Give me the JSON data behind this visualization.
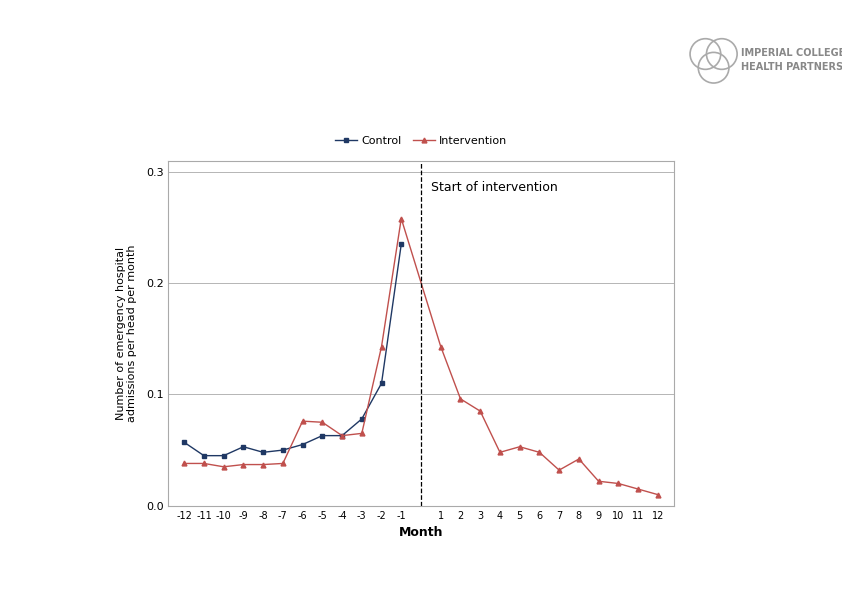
{
  "months": [
    -12,
    -11,
    -10,
    -9,
    -8,
    -7,
    -6,
    -5,
    -4,
    -3,
    -2,
    -1,
    1,
    2,
    3,
    4,
    5,
    6,
    7,
    8,
    9,
    10,
    11,
    12
  ],
  "control": [
    0.057,
    0.045,
    0.045,
    0.053,
    0.048,
    0.05,
    0.055,
    0.063,
    0.063,
    0.078,
    0.11,
    0.235,
    null,
    null,
    null,
    null,
    null,
    null,
    null,
    null,
    null,
    null,
    null,
    null
  ],
  "intervention": [
    0.038,
    0.038,
    0.035,
    0.037,
    0.037,
    0.038,
    0.076,
    0.075,
    0.063,
    0.065,
    0.143,
    0.258,
    0.143,
    0.096,
    0.085,
    0.048,
    0.053,
    0.048,
    0.032,
    0.042,
    0.022,
    0.02,
    0.015,
    0.01
  ],
  "control_color": "#1F3864",
  "intervention_color": "#C0504D",
  "ylabel": "Number of emergency hospital\nadmissions per head per month",
  "xlabel": "Month",
  "ylim": [
    0.0,
    0.31
  ],
  "yticks": [
    0.0,
    0.1,
    0.2,
    0.3
  ],
  "annotation_text": "Start of intervention",
  "background_color": "#ffffff",
  "grid_color": "#aaaaaa",
  "logo_text": "IMPERIAL COLLEGE\nHEALTH PARTNERS"
}
